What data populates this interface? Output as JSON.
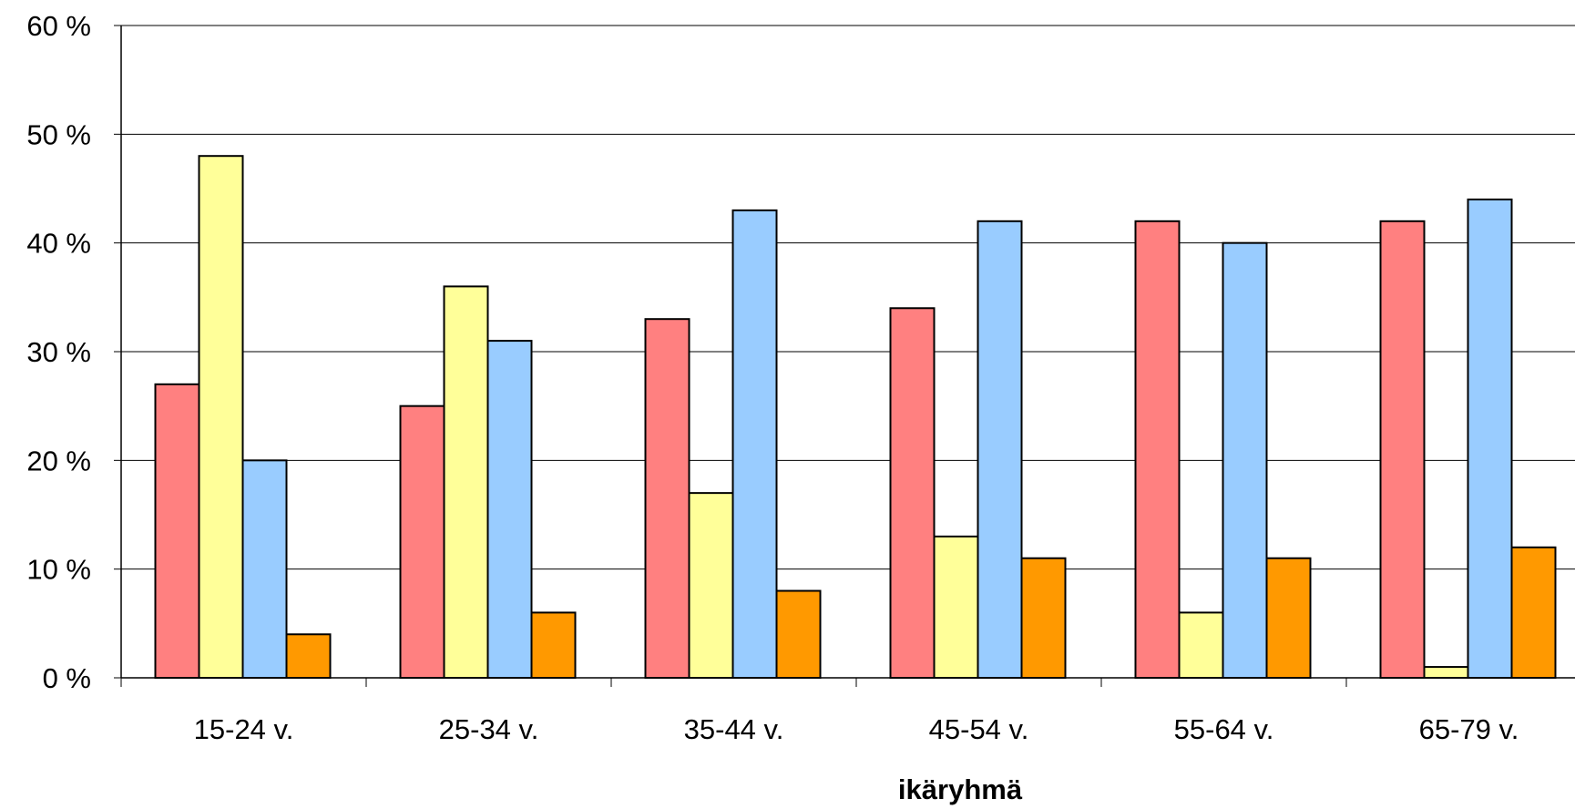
{
  "chart_data": {
    "type": "bar",
    "title": "",
    "xlabel": "ikäryhmä",
    "ylabel": "",
    "ylim": [
      0,
      60
    ],
    "yticks": [
      0,
      10,
      20,
      30,
      40,
      50,
      60
    ],
    "ytick_labels": [
      "0 %",
      "10 %",
      "20 %",
      "30 %",
      "40 %",
      "50 %",
      "60 %"
    ],
    "grid": true,
    "legend": "none",
    "categories": [
      "15-24 v.",
      "25-34 v.",
      "35-44 v.",
      "45-54 v.",
      "55-64 v.",
      "65-79 v."
    ],
    "series": [
      {
        "color": "#FF8080",
        "values": [
          27,
          25,
          33,
          34,
          42,
          42
        ]
      },
      {
        "color": "#FFFF99",
        "values": [
          48,
          36,
          17,
          13,
          6,
          1
        ]
      },
      {
        "color": "#99CCFF",
        "values": [
          20,
          31,
          43,
          42,
          40,
          44
        ]
      },
      {
        "color": "#FF9900",
        "values": [
          4,
          6,
          8,
          11,
          11,
          12
        ]
      }
    ]
  }
}
